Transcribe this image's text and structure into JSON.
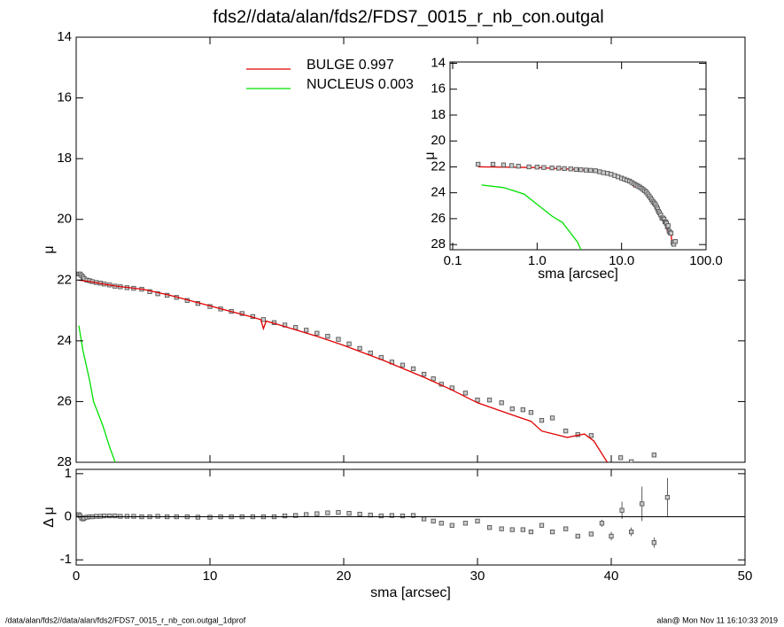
{
  "chart_data": [
    {
      "type": "line",
      "title": "fds2//data/alan/fds2/FDS7_0015_r_nb_con.outgal",
      "ylabel": "μ",
      "xlim": [
        0,
        50
      ],
      "ylim": [
        28,
        14
      ],
      "xticks": [
        0,
        10,
        20,
        30,
        40,
        50
      ],
      "xtick_labels": false,
      "yticks": [
        14,
        16,
        18,
        20,
        22,
        24,
        26,
        28
      ],
      "series": [
        {
          "kind": "markers",
          "color": "#808080",
          "x": [
            0.2,
            0.3,
            0.4,
            0.5,
            0.6,
            0.8,
            1.0,
            1.2,
            1.5,
            1.8,
            2.1,
            2.5,
            2.9,
            3.3,
            3.8,
            4.3,
            4.9,
            5.5,
            6.1,
            6.8,
            7.5,
            8.3,
            9.1,
            10.0,
            10.8,
            11.6,
            12.4,
            13.2,
            14.0,
            14.8,
            15.6,
            16.4,
            17.2,
            18.0,
            18.8,
            19.6,
            20.4,
            21.2,
            22.0,
            22.8,
            23.6,
            24.4,
            25.2,
            26.0,
            26.7,
            27.3,
            28.1,
            29.1,
            30.0,
            30.9,
            31.8,
            32.6,
            33.4,
            34.0,
            34.8,
            35.6,
            36.6,
            37.5,
            38.5,
            40.7,
            41.5,
            43.2
          ],
          "y": [
            21.8,
            21.8,
            21.85,
            21.9,
            21.95,
            22.0,
            22.02,
            22.05,
            22.08,
            22.1,
            22.13,
            22.16,
            22.2,
            22.22,
            22.25,
            22.27,
            22.3,
            22.38,
            22.45,
            22.5,
            22.57,
            22.67,
            22.77,
            22.87,
            22.95,
            23.03,
            23.1,
            23.2,
            23.3,
            23.4,
            23.48,
            23.56,
            23.65,
            23.75,
            23.85,
            23.95,
            24.1,
            24.25,
            24.4,
            24.55,
            24.7,
            24.8,
            24.92,
            25.1,
            25.25,
            25.43,
            25.55,
            25.72,
            25.95,
            25.95,
            26.04,
            26.24,
            26.27,
            26.36,
            26.62,
            26.54,
            26.97,
            27.09,
            27.12,
            27.85,
            27.98,
            27.76
          ]
        },
        {
          "kind": "line",
          "name": "BULGE  0.997",
          "color": "#e00000",
          "x": [
            0.2,
            1,
            3,
            5,
            7,
            10,
            13,
            13.8,
            14.0,
            14.2,
            15,
            18,
            20,
            23,
            26,
            28,
            30,
            32,
            33,
            34,
            34.8,
            36.7,
            38,
            38.7,
            39.7
          ],
          "y": [
            22.0,
            22.05,
            22.2,
            22.3,
            22.5,
            22.85,
            23.2,
            23.3,
            23.6,
            23.35,
            23.45,
            23.85,
            24.15,
            24.65,
            25.2,
            25.6,
            26.04,
            26.35,
            26.5,
            26.65,
            26.97,
            27.18,
            27.07,
            27.3,
            28.0
          ]
        },
        {
          "kind": "line",
          "name": "NUCLEUS  0.003",
          "color": "#00e000",
          "x": [
            0.2,
            0.5,
            1.0,
            1.3,
            2.0,
            2.5,
            3.0
          ],
          "y": [
            23.5,
            24.3,
            25.3,
            26.0,
            26.8,
            27.5,
            28.1
          ]
        }
      ]
    },
    {
      "type": "line",
      "xlabel": "sma [arcsec]",
      "ylabel": "Δ μ",
      "zero_line": true,
      "xlim": [
        0,
        50
      ],
      "ylim": [
        -1.12,
        1.1
      ],
      "xticks": [
        0,
        10,
        20,
        30,
        40,
        50
      ],
      "yticks": [
        -1,
        0,
        1
      ],
      "series": [
        {
          "kind": "markers",
          "color": "#808080",
          "x": [
            0.2,
            0.3,
            0.4,
            0.5,
            0.6,
            0.8,
            1.0,
            1.2,
            1.5,
            1.8,
            2.1,
            2.5,
            2.9,
            3.3,
            3.8,
            4.3,
            4.9,
            5.5,
            6.1,
            6.8,
            7.5,
            8.3,
            9.1,
            10.0,
            10.8,
            11.6,
            12.4,
            13.2,
            14.0,
            14.8,
            15.6,
            16.4,
            17.2,
            18.0,
            18.8,
            19.6,
            20.4,
            21.2,
            22.0,
            22.8,
            23.6,
            24.4,
            25.2,
            26.0,
            26.7,
            27.3,
            28.1,
            29.1,
            30.0,
            30.9,
            31.8,
            32.6,
            33.4,
            34.0,
            34.8,
            35.6,
            36.6,
            37.5,
            38.5
          ],
          "y": [
            0.05,
            0.02,
            -0.03,
            -0.05,
            -0.03,
            -0.01,
            0.0,
            0.0,
            0.01,
            0.01,
            0.02,
            0.02,
            0.02,
            0.01,
            0.01,
            0.01,
            0.0,
            0.0,
            0.01,
            0.0,
            0.0,
            0.0,
            -0.01,
            -0.01,
            0.0,
            0.0,
            0.0,
            0.0,
            0.0,
            0.0,
            0.02,
            0.03,
            0.05,
            0.07,
            0.09,
            0.1,
            0.08,
            0.06,
            0.04,
            0.02,
            0.03,
            0.02,
            0.03,
            -0.05,
            -0.1,
            -0.15,
            -0.2,
            -0.15,
            -0.1,
            -0.25,
            -0.28,
            -0.3,
            -0.3,
            -0.35,
            -0.2,
            -0.35,
            -0.28,
            -0.45,
            -0.4
          ]
        },
        {
          "kind": "markers",
          "color": "#808080",
          "x": [
            39.3,
            40.0,
            40.8,
            41.5,
            42.3,
            43.2,
            44.2
          ],
          "y": [
            -0.15,
            -0.45,
            0.15,
            -0.35,
            0.3,
            -0.6,
            0.45
          ],
          "errors": [
            0.08,
            0.1,
            0.2,
            0.1,
            0.4,
            0.12,
            0.45
          ]
        }
      ]
    },
    {
      "type": "line",
      "xlabel": "sma [arcsec]",
      "ylabel": "μ",
      "xlog": true,
      "xlim": [
        0.093,
        100
      ],
      "ylim": [
        28.4,
        13.9
      ],
      "xticks": [
        {
          "value": 0.1,
          "label": "0.1"
        },
        {
          "value": 1,
          "label": "1.0"
        },
        {
          "value": 10,
          "label": "10.0"
        },
        {
          "value": 100,
          "label": "100.0"
        }
      ],
      "yticks": [
        14,
        16,
        18,
        20,
        22,
        24,
        26,
        28
      ],
      "series": [
        {
          "kind": "line",
          "color": "#e00000",
          "x": [
            0.2,
            1,
            3,
            5,
            7,
            10,
            13,
            13.8,
            14.0,
            14.2,
            15,
            18,
            20,
            23,
            26,
            28,
            30,
            32,
            33,
            34,
            34.8,
            36.7,
            38,
            38.7,
            39.7
          ],
          "y": [
            22.0,
            22.05,
            22.2,
            22.3,
            22.5,
            22.85,
            23.2,
            23.3,
            23.6,
            23.35,
            23.45,
            23.85,
            24.15,
            24.65,
            25.2,
            25.6,
            26.04,
            26.35,
            26.5,
            26.65,
            26.97,
            27.18,
            27.07,
            27.3,
            28.0
          ]
        },
        {
          "kind": "markers",
          "color": "#808080",
          "x": [
            0.2,
            0.3,
            0.4,
            0.5,
            0.6,
            0.8,
            1.0,
            1.2,
            1.5,
            1.8,
            2.1,
            2.5,
            2.9,
            3.3,
            3.8,
            4.3,
            4.9,
            5.5,
            6.1,
            6.8,
            7.5,
            8.3,
            9.1,
            10.0,
            10.8,
            11.6,
            12.4,
            13.2,
            14.0,
            14.8,
            15.6,
            16.4,
            17.2,
            18.0,
            18.8,
            19.6,
            20.4,
            21.2,
            22.0,
            22.8,
            23.6,
            24.4,
            25.2,
            26.0,
            26.7,
            27.3,
            28.1,
            29.1,
            30.0,
            30.9,
            31.8,
            32.6,
            33.4,
            34.0,
            34.8,
            35.6,
            36.6,
            37.5,
            38.5,
            40.7,
            41.5,
            43.2
          ],
          "y": [
            21.8,
            21.8,
            21.85,
            21.9,
            21.95,
            22.0,
            22.02,
            22.05,
            22.08,
            22.1,
            22.13,
            22.16,
            22.2,
            22.22,
            22.25,
            22.27,
            22.3,
            22.38,
            22.45,
            22.5,
            22.57,
            22.67,
            22.77,
            22.87,
            22.95,
            23.03,
            23.1,
            23.2,
            23.3,
            23.4,
            23.48,
            23.56,
            23.65,
            23.75,
            23.85,
            23.95,
            24.1,
            24.25,
            24.4,
            24.55,
            24.7,
            24.8,
            24.92,
            25.1,
            25.25,
            25.43,
            25.55,
            25.72,
            25.95,
            25.95,
            26.04,
            26.24,
            26.27,
            26.36,
            26.62,
            26.54,
            26.97,
            27.09,
            27.12,
            27.85,
            27.98,
            27.76
          ]
        },
        {
          "kind": "line",
          "color": "#00e000",
          "x": [
            0.22,
            0.4,
            0.7,
            1.0,
            1.5,
            2.0,
            3.0,
            3.3
          ],
          "y": [
            23.4,
            23.6,
            24.1,
            24.9,
            25.8,
            26.3,
            27.8,
            28.4
          ]
        }
      ]
    }
  ],
  "footer": {
    "left": "/data/alan/fds2//data/alan/fds2/FDS7_0015_r_nb_con.outgal_1dprof",
    "right": "alan@  Mon Nov 11 16:10:33 2019"
  }
}
